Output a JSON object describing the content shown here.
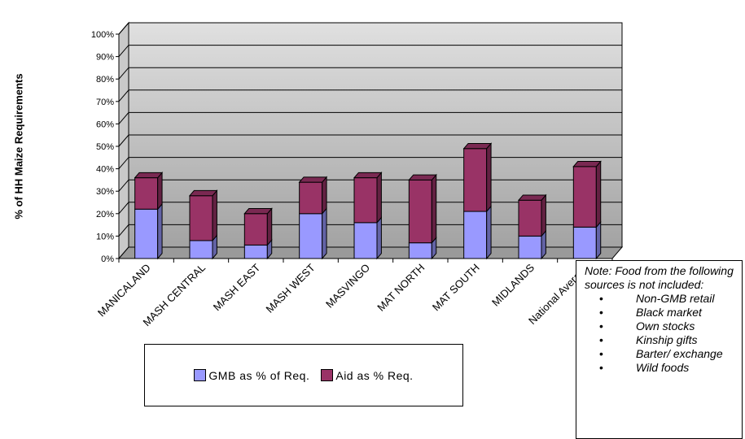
{
  "chart_data": {
    "type": "bar",
    "stacked": true,
    "title": "",
    "ylabel": "% of HH Maize Requirements",
    "xlabel": "",
    "ylim": [
      0,
      100
    ],
    "ytick_step": 10,
    "ytick_labels": [
      "0%",
      "10%",
      "20%",
      "30%",
      "40%",
      "50%",
      "60%",
      "70%",
      "80%",
      "90%",
      "100%"
    ],
    "categories": [
      "MANICALAND",
      "MASH CENTRAL",
      "MASH EAST",
      "MASH WEST",
      "MASVINGO",
      "MAT NORTH",
      "MAT SOUTH",
      "MIDLANDS",
      "National Average"
    ],
    "series": [
      {
        "name": "GMB as % of Req.",
        "color": "#9999ff",
        "values": [
          22,
          8,
          6,
          20,
          16,
          7,
          21,
          10,
          14
        ]
      },
      {
        "name": "Aid as % Req.",
        "color": "#993366",
        "values": [
          14,
          20,
          14,
          14,
          20,
          28,
          28,
          16,
          27
        ]
      }
    ],
    "grid": true,
    "legend_position": "bottom"
  },
  "note": {
    "text": "Note: Food from the following sources is not included:",
    "items": [
      "Non-GMB retail",
      "Black market",
      "Own stocks",
      "Kinship gifts",
      "Barter/ exchange",
      "Wild foods"
    ]
  }
}
